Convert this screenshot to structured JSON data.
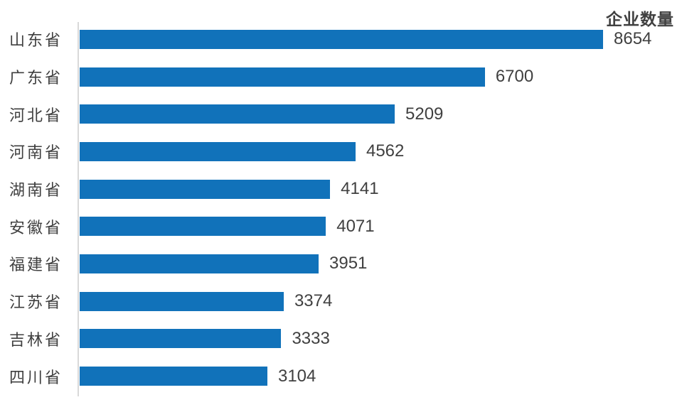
{
  "chart_data": {
    "type": "bar",
    "orientation": "horizontal",
    "title": "企业数量",
    "categories": [
      "山东省",
      "广东省",
      "河北省",
      "河南省",
      "湖南省",
      "安徽省",
      "福建省",
      "江苏省",
      "吉林省",
      "四川省"
    ],
    "values": [
      8654,
      6700,
      5209,
      4562,
      4141,
      4071,
      3951,
      3374,
      3333,
      3104
    ],
    "value_labels_shown": true,
    "xlabel": "",
    "ylabel": "",
    "axis_ticks_shown": false,
    "gridlines": false,
    "colors": {
      "bar": "#1172BA",
      "axis_line": "#D9D9D9",
      "category_text": "#3F3F3F",
      "value_text": "#404040",
      "title_text": "#404040"
    }
  }
}
